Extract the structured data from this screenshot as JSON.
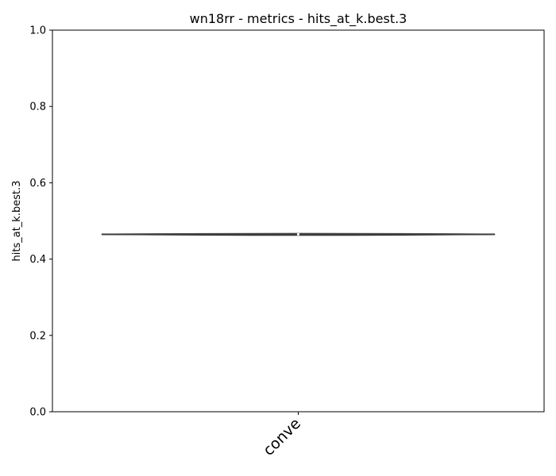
{
  "chart_data": {
    "type": "violin",
    "title": "wn18rr - metrics - hits_at_k.best.3",
    "xlabel": "",
    "ylabel": "hits_at_k.best.3",
    "ylim": [
      0,
      1
    ],
    "yticks": [
      0.0,
      0.2,
      0.4,
      0.6,
      0.8,
      1.0
    ],
    "ytick_labels": [
      "0.0",
      "0.2",
      "0.4",
      "0.6",
      "0.8",
      "1.0"
    ],
    "categories": [
      "conve"
    ],
    "series": [
      {
        "category": "conve",
        "min": 0.461,
        "max": 0.468,
        "q1": 0.463,
        "median": 0.465,
        "q3": 0.466,
        "color": "#3a75af"
      }
    ],
    "grid": false,
    "legend": "none"
  }
}
